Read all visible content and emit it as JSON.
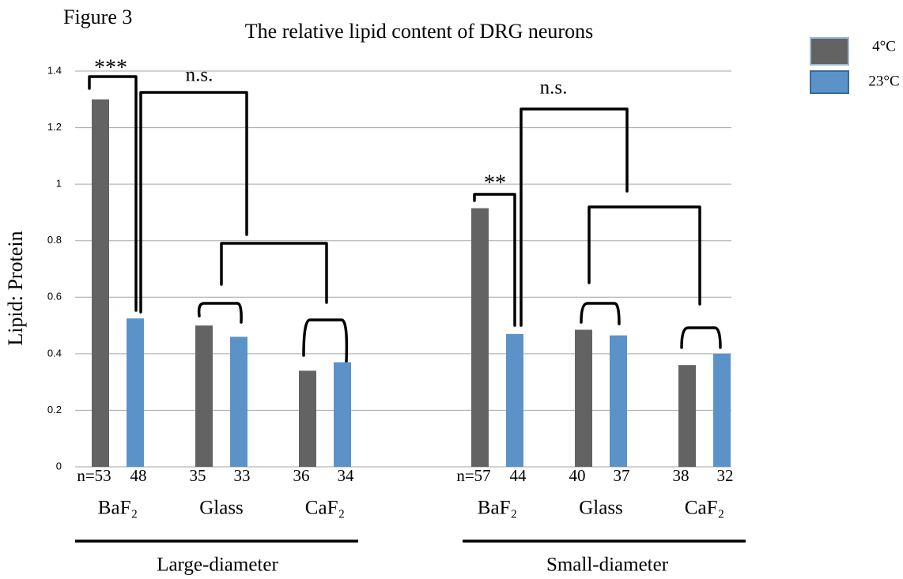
{
  "chart_data": {
    "type": "bar",
    "figure_label": "Figure 3",
    "title": "The relative lipid content of DRG neurons",
    "y_label": "Lipid: Protein",
    "categories": [
      "BaF₂",
      "Glass",
      "CaF₂",
      "BaF₂",
      "Glass",
      "CaF₂"
    ],
    "group_labels": [
      "Large-diameter",
      "Small-diameter"
    ],
    "series": [
      {
        "name": "4°C",
        "color": "#636363",
        "values": [
          1.3,
          0.5,
          0.34,
          0.915,
          0.485,
          0.36
        ],
        "sample_sizes": [
          "n=53",
          "35",
          "36",
          "n=57",
          "40",
          "38"
        ]
      },
      {
        "name": "23°C",
        "color": "#5b93c9",
        "values": [
          0.525,
          0.46,
          0.37,
          0.47,
          0.465,
          0.4
        ],
        "sample_sizes": [
          "48",
          "33",
          "34",
          "44",
          "37",
          "32"
        ]
      }
    ],
    "annotations": [
      "***",
      "n.s.",
      "**",
      "n.s."
    ],
    "ylim": [
      0,
      1.4
    ],
    "yticks": [
      0,
      0.2,
      0.4,
      0.6,
      0.8,
      1,
      1.2,
      1.4
    ],
    "grid": true,
    "legend": "top-right"
  }
}
